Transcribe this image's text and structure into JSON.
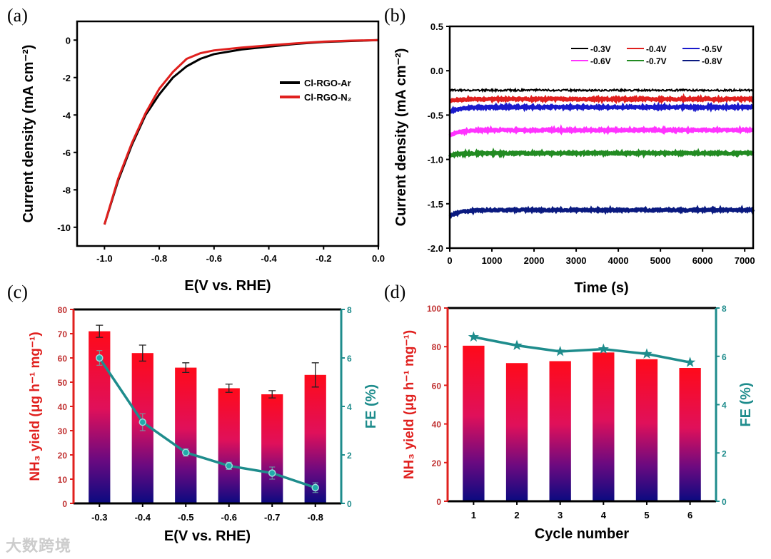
{
  "chart_data": [
    {
      "panel": "(a)",
      "type": "line",
      "xlabel": "E(V vs. RHE)",
      "ylabel": "Current density (mA cm⁻²)",
      "xlim": [
        -1.1,
        0
      ],
      "ylim": [
        -11,
        1
      ],
      "xticks": [
        -1.0,
        -0.8,
        -0.6,
        -0.4,
        -0.2,
        0.0
      ],
      "xtick_labels": [
        "-1.0",
        "-0.8",
        "-0.6",
        "-0.4",
        "-0.2",
        "0.0"
      ],
      "yticks": [
        0,
        -2,
        -4,
        -6,
        -8,
        -10
      ],
      "ytick_labels": [
        "0",
        "-2",
        "-4",
        "-6",
        "-8",
        "-10"
      ],
      "legend_position": "right",
      "series": [
        {
          "name": "Cl-RGO-Ar",
          "color": "#000000",
          "x": [
            -1.0,
            -0.95,
            -0.9,
            -0.85,
            -0.8,
            -0.75,
            -0.7,
            -0.65,
            -0.6,
            -0.5,
            -0.4,
            -0.3,
            -0.2,
            -0.1,
            0.0
          ],
          "y": [
            -9.85,
            -7.5,
            -5.6,
            -4.0,
            -2.9,
            -2.0,
            -1.4,
            -1.0,
            -0.75,
            -0.5,
            -0.35,
            -0.2,
            -0.1,
            -0.05,
            0
          ]
        },
        {
          "name": "Cl-RGO-N₂",
          "color": "#e0201e",
          "x": [
            -1.0,
            -0.95,
            -0.9,
            -0.85,
            -0.8,
            -0.75,
            -0.7,
            -0.65,
            -0.6,
            -0.5,
            -0.4,
            -0.3,
            -0.2,
            -0.1,
            0.0
          ],
          "y": [
            -9.85,
            -7.4,
            -5.5,
            -3.9,
            -2.6,
            -1.7,
            -1.0,
            -0.7,
            -0.55,
            -0.4,
            -0.28,
            -0.17,
            -0.08,
            -0.03,
            0
          ]
        }
      ]
    },
    {
      "panel": "(b)",
      "type": "line",
      "xlabel": "Time (s)",
      "ylabel": "Current density (mA cm⁻²)",
      "xlim": [
        0,
        7200
      ],
      "ylim": [
        -2.0,
        0.5
      ],
      "xticks": [
        0,
        1000,
        2000,
        3000,
        4000,
        5000,
        6000,
        7000
      ],
      "xtick_labels": [
        "0",
        "1000",
        "2000",
        "3000",
        "4000",
        "5000",
        "6000",
        "7000"
      ],
      "yticks": [
        0.5,
        0.0,
        -0.5,
        -1.0,
        -1.5,
        -2.0
      ],
      "ytick_labels": [
        "0.5",
        "0.0",
        "-0.5",
        "-1.0",
        "-1.5",
        "-2.0"
      ],
      "legend_position": "top-right",
      "series": [
        {
          "name": "-0.3V",
          "color": "#000000",
          "start": -0.22,
          "steady": -0.22
        },
        {
          "name": "-0.4V",
          "color": "#e0201e",
          "start": -0.34,
          "steady": -0.32
        },
        {
          "name": "-0.5V",
          "color": "#1a1acc",
          "start": -0.46,
          "steady": -0.41
        },
        {
          "name": "-0.6V",
          "color": "#ff33ff",
          "start": -0.73,
          "steady": -0.67
        },
        {
          "name": "-0.7V",
          "color": "#228b22",
          "start": -0.95,
          "steady": -0.93
        },
        {
          "name": "-0.8V",
          "color": "#0a1a80",
          "start": -1.64,
          "steady": -1.57
        }
      ]
    },
    {
      "panel": "(c)",
      "type": "bar",
      "xlabel": "E(V vs. RHE)",
      "ylabel": "NH₃ yield (μg h⁻¹ mg⁻¹)",
      "y2label": "FE (%)",
      "categories": [
        "-0.3",
        "-0.4",
        "-0.5",
        "-0.6",
        "-0.7",
        "-0.8"
      ],
      "ylim": [
        0,
        80
      ],
      "y2lim": [
        0,
        8
      ],
      "yticks": [
        0,
        10,
        20,
        30,
        40,
        50,
        60,
        70,
        80
      ],
      "ytick_labels": [
        "0",
        "10",
        "20",
        "30",
        "40",
        "50",
        "60",
        "70",
        "80"
      ],
      "y2ticks": [
        0,
        2,
        4,
        6,
        8
      ],
      "y2tick_labels": [
        "0",
        "2",
        "4",
        "6",
        "8"
      ],
      "series": [
        {
          "name": "NH₃ yield",
          "axis": "left",
          "values": [
            71,
            62,
            56,
            47.5,
            45,
            53
          ],
          "errors": [
            2.5,
            3.3,
            2.0,
            1.7,
            1.5,
            5.0
          ]
        },
        {
          "name": "FE",
          "axis": "right",
          "color": "#1e8c8c",
          "marker": "circle",
          "values": [
            6.0,
            3.35,
            2.1,
            1.55,
            1.25,
            0.65
          ],
          "errors": [
            0.3,
            0.35,
            0.15,
            0.15,
            0.25,
            0.2
          ]
        }
      ]
    },
    {
      "panel": "(d)",
      "type": "bar",
      "xlabel": "Cycle number",
      "ylabel": "NH₃ yield (μg h⁻¹ mg⁻¹)",
      "y2label": "FE (%)",
      "categories": [
        "1",
        "2",
        "3",
        "4",
        "5",
        "6"
      ],
      "ylim": [
        0,
        100
      ],
      "y2lim": [
        0,
        8
      ],
      "yticks": [
        0,
        20,
        40,
        60,
        80,
        100
      ],
      "ytick_labels": [
        "0",
        "20",
        "40",
        "60",
        "80",
        "100"
      ],
      "y2ticks": [
        0,
        2,
        4,
        6,
        8
      ],
      "y2tick_labels": [
        "0",
        "2",
        "4",
        "6",
        "8"
      ],
      "series": [
        {
          "name": "NH₃ yield",
          "axis": "left",
          "values": [
            80.5,
            71.5,
            72.5,
            77,
            73.5,
            69
          ]
        },
        {
          "name": "FE",
          "axis": "right",
          "color": "#1e8c8c",
          "marker": "star",
          "values": [
            6.8,
            6.45,
            6.2,
            6.3,
            6.1,
            5.75
          ]
        }
      ]
    }
  ],
  "watermark": "大数跨境"
}
